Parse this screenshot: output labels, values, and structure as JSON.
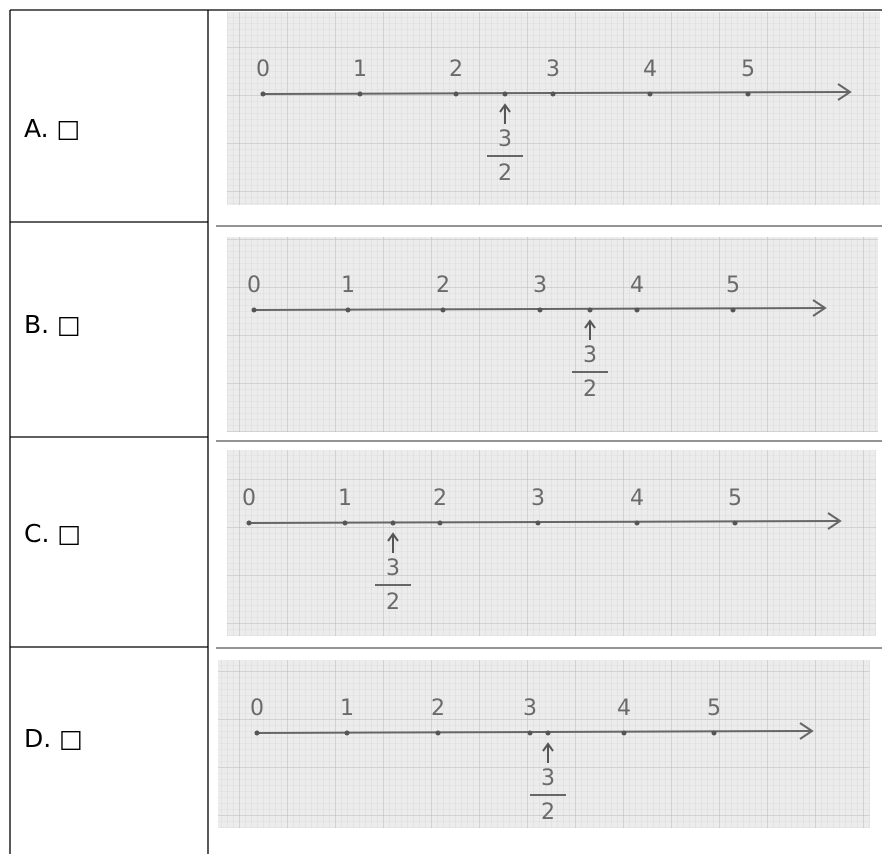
{
  "rows": [
    {
      "label": "A. □",
      "ticks": [
        "0",
        "1",
        "2",
        "3",
        "4",
        "5"
      ],
      "fraction": {
        "numerator": "3",
        "denominator": "2"
      }
    },
    {
      "label": "B. □",
      "ticks": [
        "0",
        "1",
        "2",
        "3",
        "4",
        "5"
      ],
      "fraction": {
        "numerator": "3",
        "denominator": "2"
      }
    },
    {
      "label": "C. □",
      "ticks": [
        "0",
        "1",
        "2",
        "3",
        "4",
        "5"
      ],
      "fraction": {
        "numerator": "3",
        "denominator": "2"
      }
    },
    {
      "label": "D. □",
      "ticks": [
        "0",
        "1",
        "2",
        "3",
        "4",
        "5"
      ],
      "fraction": {
        "numerator": "3",
        "denominator": "2"
      }
    }
  ]
}
